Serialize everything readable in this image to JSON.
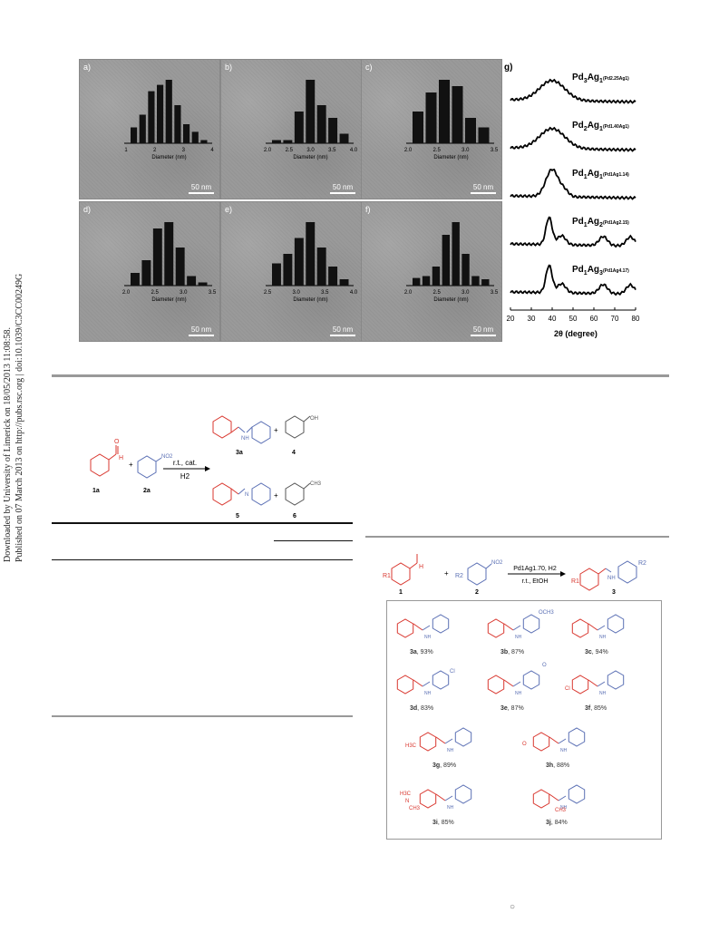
{
  "sidebar": {
    "line1": "Downloaded by University of Limerick on 18/05/2013 11:08:58.",
    "line2": "Published on 07 March 2013 on http://pubs.rsc.org | doi:10.1039/C3CC00249G"
  },
  "figure1": {
    "panels": [
      {
        "label": "a)",
        "scale": "50 nm",
        "xlabel": "Diameter (nm)",
        "ticks": [
          "1",
          "2",
          "3",
          "4"
        ],
        "bars": [
          0.25,
          0.45,
          0.82,
          0.92,
          1.0,
          0.6,
          0.3,
          0.18,
          0.05
        ]
      },
      {
        "label": "b)",
        "scale": "50 nm",
        "xlabel": "Diameter (nm)",
        "ticks": [
          "2.0",
          "2.5",
          "3.0",
          "3.5",
          "4.0"
        ],
        "bars": [
          0.05,
          0.05,
          0.5,
          1.0,
          0.6,
          0.4,
          0.15
        ]
      },
      {
        "label": "c)",
        "scale": "50 nm",
        "xlabel": "Diameter (nm)",
        "ticks": [
          "2.0",
          "2.5",
          "3.0",
          "3.5"
        ],
        "bars": [
          0.5,
          0.8,
          1.0,
          0.9,
          0.4,
          0.25
        ]
      },
      {
        "label": "d)",
        "scale": "50 nm",
        "xlabel": "Diameter (nm)",
        "ticks": [
          "2.0",
          "2.5",
          "3.0",
          "3.5"
        ],
        "bars": [
          0.2,
          0.4,
          0.9,
          1.0,
          0.6,
          0.15,
          0.05
        ]
      },
      {
        "label": "e)",
        "scale": "50 nm",
        "xlabel": "Diameter (nm)",
        "ticks": [
          "2.5",
          "3.0",
          "3.5",
          "4.0"
        ],
        "bars": [
          0.35,
          0.5,
          0.75,
          1.0,
          0.6,
          0.3,
          0.1
        ]
      },
      {
        "label": "f)",
        "scale": "50 nm",
        "xlabel": "Diameter (nm)",
        "ticks": [
          "2.0",
          "2.5",
          "3.0",
          "3.5"
        ],
        "bars": [
          0.12,
          0.15,
          0.3,
          0.8,
          1.0,
          0.5,
          0.15,
          0.1
        ]
      }
    ],
    "xrd": {
      "label": "g)",
      "xlabel": "2θ (degree)",
      "ticks": [
        "20",
        "30",
        "40",
        "50",
        "60",
        "70",
        "80"
      ],
      "traces": [
        {
          "main": "Pd",
          "s1": "3",
          "m2": "Ag",
          "s2": "1",
          "sub": "(Pd2.25Ag1)"
        },
        {
          "main": "Pd",
          "s1": "2",
          "m2": "Ag",
          "s2": "1",
          "sub": "(Pd1.40Ag1)"
        },
        {
          "main": "Pd",
          "s1": "1",
          "m2": "Ag",
          "s2": "1",
          "sub": "(Pd1Ag1.14)"
        },
        {
          "main": "Pd",
          "s1": "1",
          "m2": "Ag",
          "s2": "2",
          "sub": "(Pd1Ag2.15)"
        },
        {
          "main": "Pd",
          "s1": "1",
          "m2": "Ag",
          "s2": "3",
          "sub": "(Pd1Ag4.17)"
        }
      ]
    }
  },
  "scheme1": {
    "conditions_top": "r.t., cat.",
    "conditions_bottom": "H2",
    "labels": {
      "c1a": "1a",
      "c2a": "2a",
      "c3a": "3a",
      "c4": "4",
      "c5": "5",
      "c6": "6"
    },
    "plus": "+",
    "nh": "NH",
    "n": "N",
    "oh": "OH",
    "no2": "NO2",
    "o": "O",
    "h": "H",
    "ch3": "CH3"
  },
  "scheme2": {
    "reagent1": "1",
    "reagent2": "2",
    "product": "3",
    "conditions_top": "Pd1Ag1.70, H2",
    "conditions_bottom": "r.t., EtOH",
    "r1": "R1",
    "r2": "R2",
    "h": "H",
    "no2": "NO2",
    "o": "O",
    "nh": "NH",
    "plus": "+",
    "compounds": [
      {
        "id": "3a",
        "yield": ", 93%"
      },
      {
        "id": "3b",
        "yield": ", 87%"
      },
      {
        "id": "3c",
        "yield": ", 94%"
      },
      {
        "id": "3d",
        "yield": ", 83%"
      },
      {
        "id": "3e",
        "yield": ", 87%"
      },
      {
        "id": "3f",
        "yield": ", 85%"
      },
      {
        "id": "3g",
        "yield": ", 89%"
      },
      {
        "id": "3h",
        "yield": ", 88%"
      },
      {
        "id": "3i",
        "yield": ", 85%"
      },
      {
        "id": "3j",
        "yield": ", 84%"
      }
    ],
    "och3": "OCH3",
    "cl": "Cl",
    "h3c": "H3C",
    "ch3": "CH3",
    "nme": "N"
  },
  "footer_mark": "○",
  "colors": {
    "red": "#d9372f",
    "blue": "#5a6fb4",
    "rule": "#999999"
  }
}
